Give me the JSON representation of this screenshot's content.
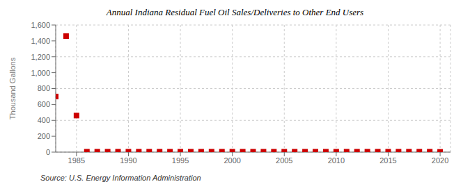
{
  "chart_data": {
    "type": "scatter",
    "title": "Annual Indiana Residual Fuel Oil Sales/Deliveries to Other End Users",
    "y_label": "Thousand Gallons",
    "annotations": [
      "Source: U.S. Energy Information Administration"
    ],
    "color": "#cc0000",
    "marker": "square",
    "grid": true,
    "xlim": [
      1983,
      2021
    ],
    "ylim": [
      0,
      1600
    ],
    "xticks": [
      1985,
      1990,
      1995,
      2000,
      2005,
      2010,
      2015,
      2020
    ],
    "yticks": [
      0,
      200,
      400,
      600,
      800,
      {
        "value": 1000,
        "label": "1,000"
      },
      {
        "value": 1200,
        "label": "1,200"
      },
      {
        "value": 1400,
        "label": "1,400"
      },
      {
        "value": 1600,
        "label": "1,600"
      }
    ],
    "x": [
      1983,
      1984,
      1985,
      1986,
      1987,
      1988,
      1989,
      1990,
      1991,
      1992,
      1993,
      1994,
      1995,
      1996,
      1997,
      1998,
      1999,
      2000,
      2001,
      2002,
      2003,
      2004,
      2005,
      2006,
      2007,
      2008,
      2009,
      2010,
      2011,
      2012,
      2013,
      2014,
      2015,
      2016,
      2017,
      2018,
      2019,
      2020
    ],
    "values": [
      700,
      1460,
      460,
      5,
      5,
      5,
      5,
      5,
      5,
      5,
      5,
      5,
      5,
      5,
      5,
      5,
      5,
      5,
      5,
      5,
      5,
      5,
      5,
      5,
      5,
      5,
      5,
      5,
      5,
      5,
      5,
      5,
      5,
      5,
      5,
      5,
      5,
      3
    ]
  }
}
